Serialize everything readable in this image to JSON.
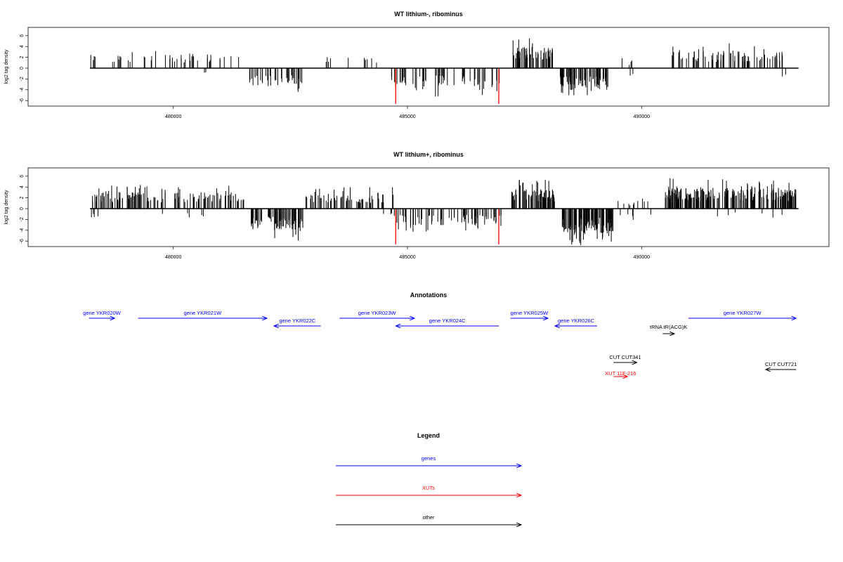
{
  "panels": [
    {
      "title": "WT lithium-, ribominus",
      "ylabel": "log2 tag density",
      "yticks": [
        "6",
        "4",
        "2",
        "0",
        "-2",
        "-4",
        "-6"
      ],
      "xticks": [
        "480000",
        "485000",
        "490000"
      ],
      "regions": [
        {
          "x0": 478220,
          "x1": 478330,
          "sign": 1,
          "n": 4,
          "amp": 2.2
        },
        {
          "x0": 478600,
          "x1": 479200,
          "sign": 1,
          "n": 10,
          "amp": 2.0
        },
        {
          "x0": 479350,
          "x1": 481400,
          "sign": 1,
          "n": 34,
          "amp": 2.3
        },
        {
          "x0": 480500,
          "x1": 480700,
          "sign": -1,
          "n": 2,
          "amp": 0.8
        },
        {
          "x0": 481600,
          "x1": 482800,
          "sign": -1,
          "n": 40,
          "amp": 2.8
        },
        {
          "x0": 483200,
          "x1": 483400,
          "sign": 1,
          "n": 4,
          "amp": 2.2
        },
        {
          "x0": 483700,
          "x1": 484500,
          "sign": 1,
          "n": 7,
          "amp": 1.6
        },
        {
          "x0": 484650,
          "x1": 487000,
          "sign": -1,
          "n": 60,
          "amp": 3.0
        },
        {
          "x0": 487250,
          "x1": 488100,
          "sign": 1,
          "n": 55,
          "amp": 3.3
        },
        {
          "x0": 488250,
          "x1": 489350,
          "sign": -1,
          "n": 75,
          "amp": 3.3
        },
        {
          "x0": 489500,
          "x1": 489800,
          "sign": 1,
          "n": 4,
          "amp": 1.2
        },
        {
          "x0": 489700,
          "x1": 489900,
          "sign": -1,
          "n": 2,
          "amp": 1.2
        },
        {
          "x0": 490600,
          "x1": 493100,
          "sign": 1,
          "n": 80,
          "amp": 2.6
        },
        {
          "x0": 493000,
          "x1": 493100,
          "sign": -1,
          "n": 2,
          "amp": 1.8
        }
      ],
      "red_lines": [
        484750,
        486950
      ]
    },
    {
      "title": "WT lithium+, ribominus",
      "ylabel": "log2 tag density",
      "yticks": [
        "6",
        "4",
        "2",
        "0",
        "-2",
        "-4",
        "-6"
      ],
      "xticks": [
        "480000",
        "485000",
        "490000"
      ],
      "regions": [
        {
          "x0": 478220,
          "x1": 481550,
          "sign": 1,
          "n": 130,
          "amp": 2.5
        },
        {
          "x0": 478250,
          "x1": 478400,
          "sign": -1,
          "n": 4,
          "amp": 1.5
        },
        {
          "x0": 479600,
          "x1": 481200,
          "sign": -1,
          "n": 5,
          "amp": 1.5
        },
        {
          "x0": 481650,
          "x1": 482800,
          "sign": -1,
          "n": 80,
          "amp": 3.3
        },
        {
          "x0": 482800,
          "x1": 484700,
          "sign": 1,
          "n": 60,
          "amp": 2.3
        },
        {
          "x0": 484450,
          "x1": 484700,
          "sign": -1,
          "n": 4,
          "amp": 1.0
        },
        {
          "x0": 484700,
          "x1": 487000,
          "sign": -1,
          "n": 75,
          "amp": 2.6
        },
        {
          "x0": 487150,
          "x1": 488150,
          "sign": 1,
          "n": 75,
          "amp": 3.0
        },
        {
          "x0": 488300,
          "x1": 489400,
          "sign": -1,
          "n": 110,
          "amp": 3.8
        },
        {
          "x0": 489400,
          "x1": 490300,
          "sign": 1,
          "n": 10,
          "amp": 1.2
        },
        {
          "x0": 489400,
          "x1": 490200,
          "sign": -1,
          "n": 5,
          "amp": 1.3
        },
        {
          "x0": 490500,
          "x1": 493300,
          "sign": 1,
          "n": 220,
          "amp": 3.2
        },
        {
          "x0": 491000,
          "x1": 493300,
          "sign": -1,
          "n": 6,
          "amp": 1.2
        }
      ],
      "red_lines": [
        484750,
        486950
      ]
    }
  ],
  "annotations": {
    "title": "Annotations",
    "features": [
      {
        "label": "gene YKR020W",
        "x0": 478200,
        "x1": 478750,
        "dir": "right",
        "row": 0,
        "color": "#0000ff"
      },
      {
        "label": "gene YKR021W",
        "x0": 479250,
        "x1": 482000,
        "dir": "right",
        "row": 0,
        "color": "#0000ff"
      },
      {
        "label": "gene YKR022C",
        "x0": 482150,
        "x1": 483150,
        "dir": "left",
        "row": 1,
        "color": "#0000ff"
      },
      {
        "label": "gene YKR023W",
        "x0": 483550,
        "x1": 485150,
        "dir": "right",
        "row": 0,
        "color": "#0000ff"
      },
      {
        "label": "gene YKR024C",
        "x0": 484750,
        "x1": 486950,
        "dir": "left",
        "row": 1,
        "color": "#0000ff"
      },
      {
        "label": "gene YKR025W",
        "x0": 487200,
        "x1": 488000,
        "dir": "right",
        "row": 0,
        "color": "#0000ff"
      },
      {
        "label": "gene YKR026C",
        "x0": 488150,
        "x1": 489050,
        "dir": "left",
        "row": 1,
        "color": "#0000ff"
      },
      {
        "label": "gene YKR027W",
        "x0": 491000,
        "x1": 493300,
        "dir": "right",
        "row": 0,
        "color": "#0000ff"
      },
      {
        "label": "tRNA tR(ACG)K",
        "x0": 490450,
        "x1": 490700,
        "dir": "right",
        "row": 2,
        "color": "#000000"
      },
      {
        "label": "CUT CUT341",
        "x0": 489400,
        "x1": 489900,
        "dir": "right",
        "row": 3,
        "color": "#000000"
      },
      {
        "label": "CUT CUT721",
        "x0": 492650,
        "x1": 493300,
        "dir": "left",
        "row": 4,
        "color": "#000000"
      },
      {
        "label": "XUT 11F-216",
        "x0": 489400,
        "x1": 489700,
        "dir": "right",
        "row": 5,
        "color": "#ff0000"
      }
    ]
  },
  "legend": {
    "title": "Legend",
    "items": [
      {
        "label": "genes",
        "color": "#0000ff"
      },
      {
        "label": "XUTs",
        "color": "#ff0000"
      },
      {
        "label": "other",
        "color": "#000000"
      }
    ]
  },
  "chart_data": {
    "type": "bar",
    "title": "WT lithium-, ribominus / WT lithium+, ribominus",
    "xlabel": "",
    "ylabel": "log2 tag density",
    "xlim": [
      476900,
      494000
    ],
    "ylim": [
      -7,
      7
    ],
    "xticks": [
      480000,
      485000,
      490000
    ],
    "yticks": [
      6,
      4,
      2,
      0,
      -2,
      -4,
      -6
    ],
    "grid": false,
    "legend_placement": "bottom-center",
    "highlight_positions_red": [
      484750,
      486950
    ],
    "annotation_features": [
      "gene YKR020W",
      "gene YKR021W",
      "gene YKR022C",
      "gene YKR023W",
      "gene YKR024C",
      "gene YKR025W",
      "gene YKR026C",
      "gene YKR027W",
      "tRNA tR(ACG)K",
      "CUT CUT341",
      "CUT CUT721",
      "XUT 11F-216"
    ]
  }
}
